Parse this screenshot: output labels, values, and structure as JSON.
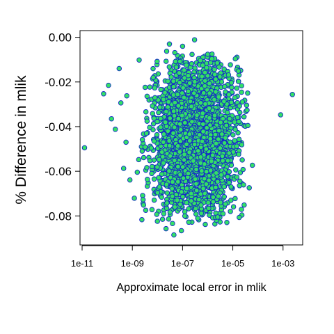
{
  "chart_data": {
    "type": "scatter",
    "xlabel": "Approximate local error in mlik",
    "ylabel": "% Difference in mlik",
    "x_scale": "log10",
    "x_ticks": [
      {
        "value": 1e-11,
        "label": "1e-11"
      },
      {
        "value": 1e-09,
        "label": "1e-09"
      },
      {
        "value": 1e-07,
        "label": "1e-07"
      },
      {
        "value": 1e-05,
        "label": "1e-05"
      },
      {
        "value": 0.001,
        "label": "1e-03"
      }
    ],
    "y_ticks": [
      {
        "value": 0.0,
        "label": "0.00"
      },
      {
        "value": -0.02,
        "label": "-0.02"
      },
      {
        "value": -0.04,
        "label": "-0.04"
      },
      {
        "value": -0.06,
        "label": "-0.06"
      },
      {
        "value": -0.08,
        "label": "-0.08"
      }
    ],
    "xlim": [
      1e-11,
      0.005
    ],
    "ylim": [
      -0.093,
      0.003
    ],
    "grid": false,
    "colors": {
      "point_fill": "#33e066",
      "point_edge": "#1428c8"
    },
    "points": [
      [
        1.25e-11,
        -0.0495
      ],
      [
        0.0008,
        -0.0347
      ],
      [
        0.00235,
        -0.0256
      ],
      [
        7.2e-11,
        -0.0253
      ],
      [
        1.12e-10,
        -0.0215
      ],
      [
        1.48e-10,
        -0.0365
      ],
      [
        2.1e-10,
        -0.0412
      ],
      [
        3e-10,
        -0.014
      ],
      [
        3.5e-10,
        -0.0294
      ],
      [
        4.5e-10,
        -0.0587
      ],
      [
        5.6e-10,
        -0.047
      ],
      [
        6e-10,
        -0.0262
      ],
      [
        8e-10,
        -0.0639
      ],
      [
        1.2e-09,
        -0.0721
      ],
      [
        2.4e-09,
        -0.0817
      ],
      [
        1.8e-09,
        -0.0548
      ],
      [
        2.2e-08,
        -0.0857
      ],
      [
        4.5e-08,
        -0.0885
      ],
      [
        9e-08,
        -0.0866
      ],
      [
        8e-07,
        -0.0838
      ],
      [
        2.5e-06,
        -0.0805
      ],
      [
        8e-06,
        -0.078
      ],
      [
        1.8e-05,
        -0.0807
      ],
      [
        4.5e-05,
        -0.0674
      ],
      [
        6e-05,
        -0.0573
      ],
      [
        1e-06,
        -0.0076
      ],
      [
        3e-07,
        -0.0011
      ],
      [
        1e-07,
        -0.004
      ],
      [
        3e-08,
        -0.003
      ]
    ],
    "cloud": {
      "x_range": [
        1e-09,
        8e-05
      ],
      "y_range": [
        -0.085,
        -0.005
      ],
      "count": 2600,
      "seed": 7
    }
  }
}
